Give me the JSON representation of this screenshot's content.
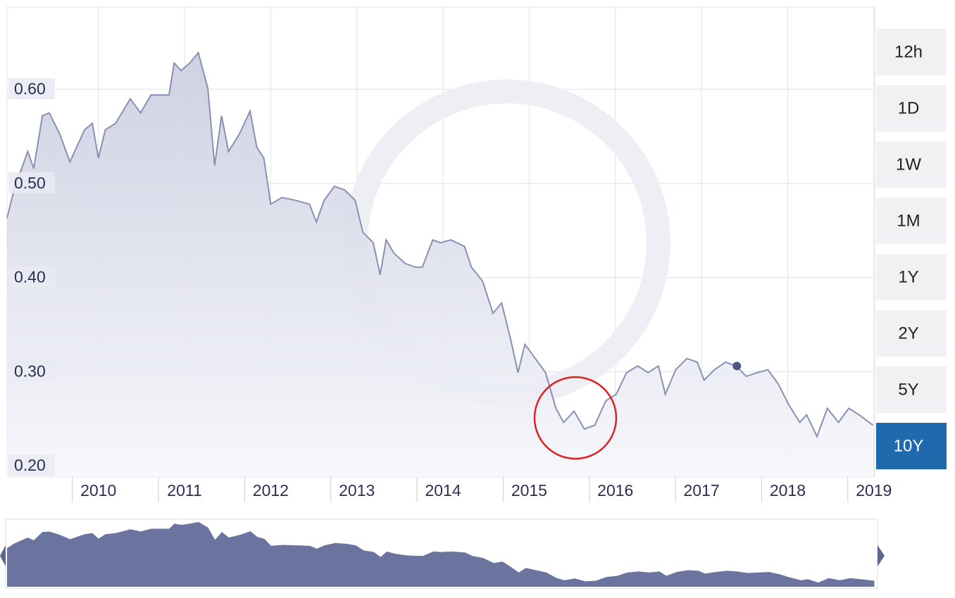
{
  "chart_data": {
    "type": "area",
    "x": [
      2008.94,
      2009.02,
      2009.18,
      2009.25,
      2009.35,
      2009.43,
      2009.55,
      2009.67,
      2009.84,
      2009.93,
      2010.0,
      2010.08,
      2010.2,
      2010.37,
      2010.49,
      2010.61,
      2010.82,
      2010.88,
      2010.96,
      2011.06,
      2011.16,
      2011.27,
      2011.35,
      2011.43,
      2011.51,
      2011.64,
      2011.76,
      2011.84,
      2011.92,
      2012.0,
      2012.13,
      2012.29,
      2012.45,
      2012.53,
      2012.62,
      2012.74,
      2012.86,
      2012.98,
      2013.07,
      2013.19,
      2013.27,
      2013.34,
      2013.43,
      2013.56,
      2013.68,
      2013.76,
      2013.88,
      2013.97,
      2014.09,
      2014.25,
      2014.33,
      2014.46,
      2014.58,
      2014.68,
      2014.78,
      2014.87,
      2014.95,
      2015.07,
      2015.19,
      2015.31,
      2015.4,
      2015.52,
      2015.64,
      2015.76,
      2015.89,
      2016.01,
      2016.13,
      2016.26,
      2016.38,
      2016.5,
      2016.58,
      2016.7,
      2016.83,
      2016.95,
      2017.03,
      2017.15,
      2017.28,
      2017.4,
      2017.52,
      2017.65,
      2017.77,
      2017.89,
      2018.01,
      2018.14,
      2018.22,
      2018.34,
      2018.46,
      2018.59,
      2018.71,
      2018.83,
      2018.99
    ],
    "values": [
      0.463,
      0.493,
      0.534,
      0.516,
      0.572,
      0.575,
      0.553,
      0.523,
      0.557,
      0.564,
      0.527,
      0.557,
      0.564,
      0.59,
      0.575,
      0.594,
      0.594,
      0.628,
      0.62,
      0.628,
      0.639,
      0.601,
      0.519,
      0.572,
      0.534,
      0.553,
      0.577,
      0.538,
      0.527,
      0.478,
      0.485,
      0.482,
      0.478,
      0.459,
      0.482,
      0.497,
      0.493,
      0.482,
      0.448,
      0.437,
      0.403,
      0.44,
      0.426,
      0.415,
      0.411,
      0.411,
      0.44,
      0.437,
      0.44,
      0.433,
      0.411,
      0.396,
      0.362,
      0.373,
      0.336,
      0.299,
      0.329,
      0.314,
      0.299,
      0.261,
      0.246,
      0.258,
      0.239,
      0.243,
      0.269,
      0.276,
      0.299,
      0.306,
      0.299,
      0.306,
      0.276,
      0.302,
      0.314,
      0.31,
      0.291,
      0.302,
      0.31,
      0.306,
      0.295,
      0.299,
      0.302,
      0.287,
      0.265,
      0.246,
      0.254,
      0.231,
      0.261,
      0.246,
      0.261,
      0.254,
      0.243
    ],
    "color": "#8a90b4",
    "marker": {
      "x": 2017.41,
      "y": 0.306
    },
    "xlim": [
      2008.94,
      2019.01
    ],
    "xticks": [
      2010,
      2011,
      2012,
      2013,
      2014,
      2015,
      2016,
      2017,
      2018,
      2019
    ],
    "ylim": [
      0.188,
      0.6875
    ],
    "yticks": [
      {
        "value": 0.2,
        "label": "0.20"
      },
      {
        "value": 0.3,
        "label": "0.30"
      },
      {
        "value": 0.4,
        "label": "0.40"
      },
      {
        "value": 0.5,
        "label": "0.50"
      },
      {
        "value": 0.6,
        "label": "0.60"
      }
    ],
    "grid": true,
    "navigator": true
  },
  "range_buttons": {
    "options": [
      "12h",
      "1D",
      "1W",
      "1M",
      "1Y",
      "2Y",
      "5Y",
      "10Y"
    ],
    "selected": 7
  }
}
